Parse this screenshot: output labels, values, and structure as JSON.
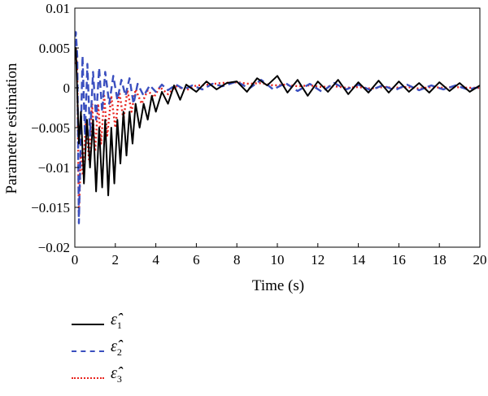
{
  "chart_data": {
    "type": "line",
    "xlabel": "Time (s)",
    "ylabel": "Parameter estimation",
    "xlim": [
      0,
      20
    ],
    "ylim": [
      -0.02,
      0.01
    ],
    "xticks": [
      "0",
      "2",
      "4",
      "6",
      "8",
      "10",
      "12",
      "14",
      "16",
      "18",
      "20"
    ],
    "yticks": [
      "0.01",
      "0.005",
      "0",
      "−0.005",
      "−0.01",
      "−0.015",
      "−0.02"
    ],
    "grid": false,
    "legend_position": "below",
    "series": [
      {
        "name": "ε̂₁",
        "legend_symbol": "ε̂",
        "legend_subscript": "1",
        "color": "#000000",
        "dash": "solid",
        "x": [
          0,
          0.05,
          0.1,
          0.2,
          0.3,
          0.45,
          0.6,
          0.75,
          0.9,
          1.05,
          1.2,
          1.35,
          1.5,
          1.65,
          1.8,
          1.95,
          2.1,
          2.25,
          2.4,
          2.55,
          2.7,
          2.85,
          3.0,
          3.2,
          3.4,
          3.6,
          3.8,
          4.0,
          4.3,
          4.6,
          4.9,
          5.2,
          5.5,
          6.0,
          6.5,
          7.0,
          7.5,
          8.0,
          8.5,
          9.0,
          9.5,
          10.0,
          10.5,
          11.0,
          11.5,
          12.0,
          12.5,
          13.0,
          13.5,
          14.0,
          14.5,
          15.0,
          15.5,
          16.0,
          16.5,
          17.0,
          17.5,
          18.0,
          18.5,
          19.0,
          19.5,
          20.0
        ],
        "y": [
          0.004,
          0.005,
          0.001,
          -0.007,
          -0.003,
          -0.012,
          -0.004,
          -0.01,
          -0.004,
          -0.013,
          -0.005,
          -0.0125,
          -0.004,
          -0.0135,
          -0.005,
          -0.012,
          -0.004,
          -0.0095,
          -0.003,
          -0.0085,
          -0.003,
          -0.007,
          -0.002,
          -0.005,
          -0.002,
          -0.004,
          -0.001,
          -0.003,
          -0.0005,
          -0.002,
          0.0003,
          -0.0015,
          0.0004,
          -0.0005,
          0.0008,
          -0.0002,
          0.0006,
          0.0008,
          -0.0005,
          0.0012,
          0.0003,
          0.0015,
          -0.0006,
          0.001,
          -0.001,
          0.0008,
          -0.0005,
          0.001,
          -0.0008,
          0.0007,
          -0.0006,
          0.0009,
          -0.0006,
          0.0008,
          -0.0005,
          0.0006,
          -0.0006,
          0.0007,
          -0.0004,
          0.0006,
          -0.0005,
          0.0003
        ]
      },
      {
        "name": "ε̂₂",
        "legend_symbol": "ε̂",
        "legend_subscript": "2",
        "color": "#3a4fbf",
        "dash": "dashed",
        "x": [
          0,
          0.05,
          0.12,
          0.2,
          0.28,
          0.38,
          0.5,
          0.62,
          0.75,
          0.9,
          1.05,
          1.2,
          1.35,
          1.5,
          1.7,
          1.9,
          2.1,
          2.3,
          2.5,
          2.7,
          2.9,
          3.1,
          3.4,
          3.7,
          4.0,
          4.3,
          4.6,
          5.0,
          5.4,
          5.8,
          6.3,
          6.8,
          7.3,
          8.0,
          8.6,
          9.2,
          9.8,
          10.4,
          11.0,
          11.6,
          12.2,
          12.8,
          13.4,
          14.0,
          14.6,
          15.2,
          15.8,
          16.4,
          17.0,
          17.6,
          18.2,
          18.8,
          19.4,
          20.0
        ],
        "y": [
          0.005,
          0.007,
          0.004,
          -0.017,
          -0.008,
          0.004,
          -0.006,
          0.003,
          -0.006,
          0.002,
          -0.004,
          0.0025,
          -0.003,
          0.002,
          -0.002,
          0.0015,
          -0.0015,
          0.001,
          -0.001,
          0.0012,
          -0.002,
          0.0005,
          -0.001,
          0.0003,
          -0.0005,
          0.0004,
          -0.0003,
          0.0004,
          -0.0002,
          0.0003,
          -0.0002,
          0.0005,
          0.0002,
          0.0008,
          -0.0001,
          0.001,
          -0.0002,
          0.0006,
          -0.0004,
          0.0005,
          -0.0005,
          0.0006,
          -0.0002,
          0.0004,
          -0.0003,
          0.0003,
          -0.0003,
          0.0004,
          -0.0003,
          0.0003,
          -0.0002,
          0.0003,
          -0.0002,
          0.0001
        ]
      },
      {
        "name": "ε̂₃",
        "legend_symbol": "ε̂",
        "legend_subscript": "3",
        "color": "#e8231e",
        "dash": "dotted",
        "x": [
          0,
          0.05,
          0.12,
          0.2,
          0.3,
          0.4,
          0.55,
          0.7,
          0.85,
          1.0,
          1.15,
          1.3,
          1.45,
          1.6,
          1.8,
          2.0,
          2.2,
          2.4,
          2.6,
          2.8,
          3.0,
          3.3,
          3.6,
          3.9,
          4.2,
          4.6,
          5.0,
          5.5,
          6.0,
          6.6,
          7.2,
          8.0,
          8.6,
          9.2,
          9.8,
          10.4,
          11.0,
          11.6,
          12.2,
          12.8,
          13.4,
          14.0,
          14.6,
          15.2,
          15.8,
          16.4,
          17.0,
          17.6,
          18.2,
          18.8,
          19.4,
          20.0
        ],
        "y": [
          0.003,
          0.005,
          0.002,
          -0.016,
          -0.008,
          -0.011,
          -0.004,
          -0.009,
          -0.002,
          -0.008,
          -0.002,
          -0.007,
          -0.001,
          -0.006,
          -0.001,
          -0.005,
          -0.0005,
          -0.004,
          -0.0003,
          -0.003,
          -0.0002,
          -0.002,
          -0.0003,
          -0.0012,
          0.0001,
          -0.0008,
          0.0002,
          -0.0003,
          0.0003,
          0.0004,
          0.0006,
          0.0007,
          0.0005,
          0.0006,
          0.0003,
          0.0004,
          0.0002,
          0.0003,
          0.0001,
          0.0002,
          0.0,
          0.0001,
          -0.0001,
          0.0001,
          0.0,
          0.0001,
          -0.0001,
          0.0001,
          0.0,
          0.0001,
          0.0,
          0.0
        ]
      }
    ]
  }
}
